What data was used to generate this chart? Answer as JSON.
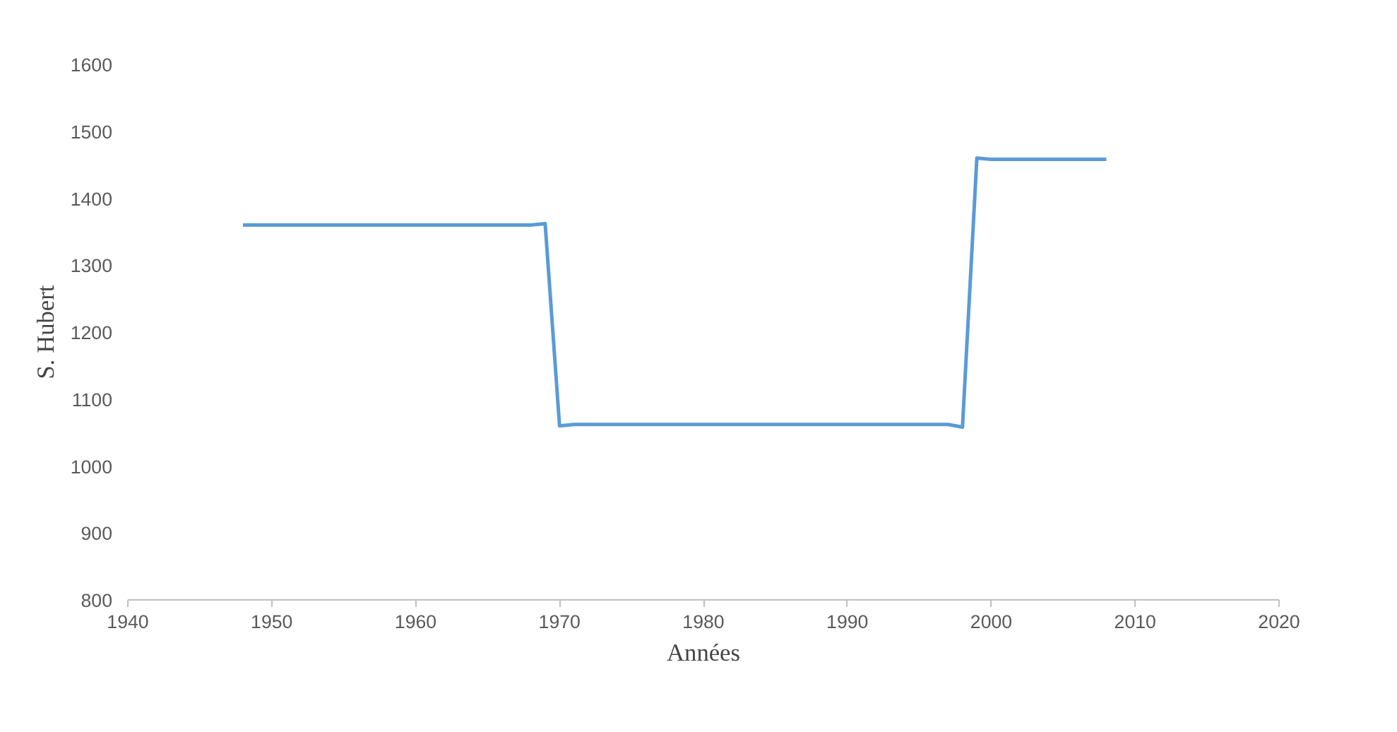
{
  "chart_data": {
    "type": "line",
    "xlabel": "Années",
    "ylabel": "S. Hubert",
    "x": [
      1948,
      1955,
      1960,
      1968,
      1969,
      1970,
      1971,
      1980,
      1990,
      1997,
      1998,
      1999,
      2000,
      2005,
      2008
    ],
    "series": [
      {
        "color": "#5b9bd5",
        "values": [
          1360,
          1360,
          1360,
          1360,
          1362,
          1060,
          1062,
          1062,
          1062,
          1062,
          1058,
          1460,
          1458,
          1458,
          1458
        ]
      }
    ],
    "xlim": [
      1940,
      2020
    ],
    "xticks": [
      1940,
      1950,
      1960,
      1970,
      1980,
      1990,
      2000,
      2010,
      2020
    ],
    "ylim": [
      800,
      1600
    ],
    "yticks": [
      800,
      900,
      1000,
      1100,
      1200,
      1300,
      1400,
      1500,
      1600
    ],
    "grid": false,
    "marker": "none",
    "line_style": "solid"
  }
}
